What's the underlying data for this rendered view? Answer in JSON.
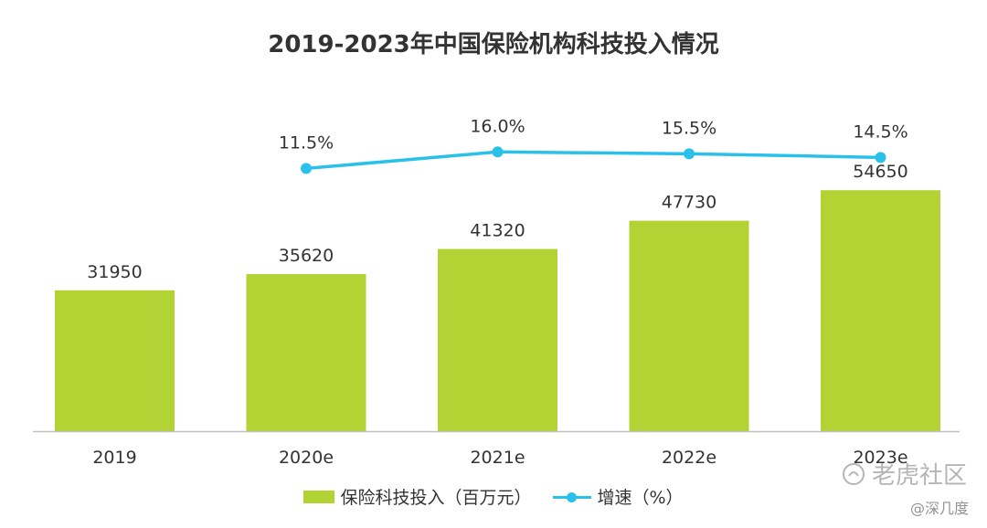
{
  "chart_data": {
    "type": "bar",
    "title": "2019-2023年中国保险机构科技投入情况",
    "categories": [
      "2019",
      "2020e",
      "2021e",
      "2022e",
      "2023e"
    ],
    "series": [
      {
        "name": "保险科技投入（百万元）",
        "type": "bar",
        "values": [
          31950,
          35620,
          41320,
          47730,
          54650
        ]
      },
      {
        "name": "增速（%）",
        "type": "line",
        "values": [
          null,
          11.5,
          16.0,
          15.5,
          14.5
        ]
      }
    ],
    "bar_labels": [
      "31950",
      "35620",
      "41320",
      "47730",
      "54650"
    ],
    "line_labels": [
      "",
      "11.5%",
      "16.0%",
      "15.5%",
      "14.5%"
    ],
    "ylim_bar": [
      0,
      75000
    ],
    "ylim_line": [
      -60,
      30
    ],
    "grid": false,
    "legend_position": "bottom"
  },
  "colors": {
    "bar": "#b3d335",
    "line": "#29c1ea",
    "text": "#333333",
    "axis": "#bfbfbf"
  },
  "watermark": {
    "text": "老虎社区",
    "icon": "tiger-community-logo-icon",
    "author": "@深几度"
  }
}
